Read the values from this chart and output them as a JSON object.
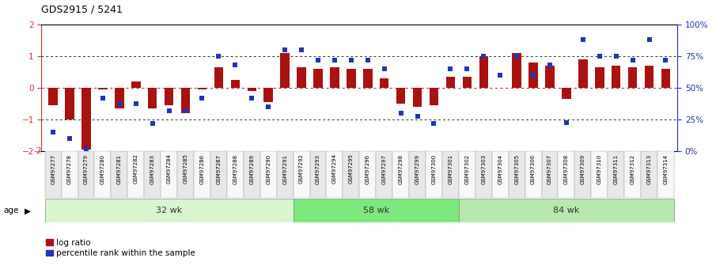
{
  "title": "GDS2915 / 5241",
  "samples": [
    "GSM97277",
    "GSM97278",
    "GSM97279",
    "GSM97280",
    "GSM97281",
    "GSM97282",
    "GSM97283",
    "GSM97284",
    "GSM97285",
    "GSM97286",
    "GSM97287",
    "GSM97288",
    "GSM97289",
    "GSM97290",
    "GSM97291",
    "GSM97292",
    "GSM97293",
    "GSM97294",
    "GSM97295",
    "GSM97296",
    "GSM97297",
    "GSM97298",
    "GSM97299",
    "GSM97300",
    "GSM97301",
    "GSM97302",
    "GSM97303",
    "GSM97304",
    "GSM97305",
    "GSM97306",
    "GSM97307",
    "GSM97308",
    "GSM97309",
    "GSM97310",
    "GSM97311",
    "GSM97312",
    "GSM97313",
    "GSM97314"
  ],
  "log_ratio": [
    -0.55,
    -1.0,
    -1.95,
    -0.05,
    -0.65,
    0.2,
    -0.65,
    -0.55,
    -0.8,
    -0.05,
    0.65,
    0.25,
    -0.1,
    -0.45,
    1.1,
    0.65,
    0.6,
    0.65,
    0.6,
    0.6,
    0.3,
    -0.5,
    -0.6,
    -0.55,
    0.35,
    0.35,
    1.0,
    0.0,
    1.1,
    0.8,
    0.7,
    -0.35,
    0.9,
    0.65,
    0.7,
    0.65,
    0.7,
    0.6
  ],
  "percentile": [
    15,
    10,
    2,
    42,
    38,
    38,
    22,
    32,
    32,
    42,
    75,
    68,
    42,
    35,
    80,
    80,
    72,
    72,
    72,
    72,
    65,
    30,
    28,
    22,
    65,
    65,
    75,
    60,
    75,
    60,
    68,
    23,
    88,
    75,
    75,
    72,
    88,
    72
  ],
  "groups": [
    {
      "label": "32 wk",
      "start": 0,
      "end": 15
    },
    {
      "label": "58 wk",
      "start": 15,
      "end": 25
    },
    {
      "label": "84 wk",
      "start": 25,
      "end": 38
    }
  ],
  "group_colors": [
    "#d8f5d0",
    "#7de87d",
    "#b8e8b0"
  ],
  "ylim": [
    -2,
    2
  ],
  "yticks": [
    -2,
    -1,
    0,
    1,
    2
  ],
  "bar_color": "#aa1111",
  "dot_color": "#2233bb",
  "dotted_line_color": "#333333",
  "zero_line_color": "#cc3333",
  "background_color": "#ffffff",
  "right_axis_ticks": [
    0,
    25,
    50,
    75,
    100
  ],
  "right_axis_labels": [
    "0%",
    "25%",
    "50%",
    "75%",
    "100%"
  ],
  "right_axis_color": "#2233bb",
  "left_axis_color": "#cc3333"
}
